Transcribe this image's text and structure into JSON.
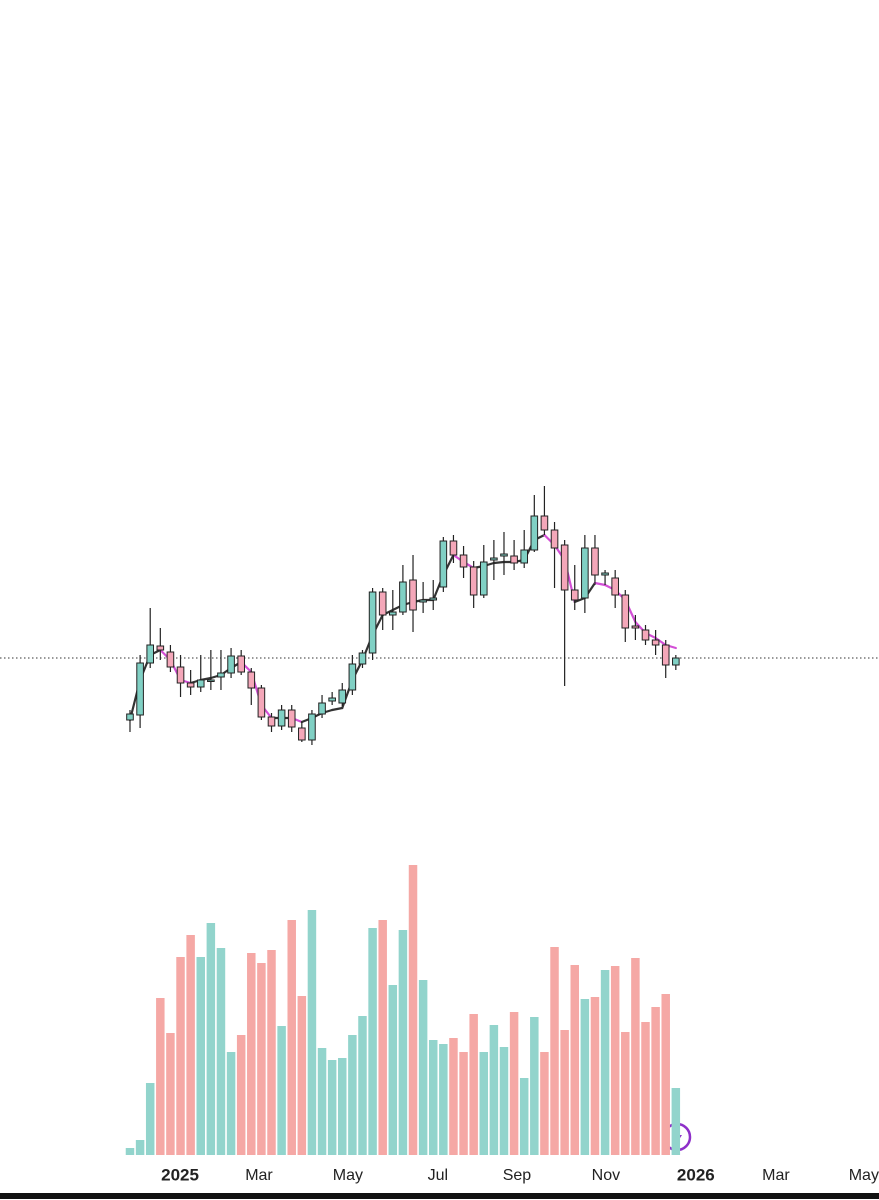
{
  "chart_data": {
    "type": "candlestick",
    "xlim": [
      -12.86,
      74.1
    ],
    "xticks": [
      {
        "value": 4.95,
        "label": "2025"
      },
      {
        "value": 12.76,
        "label": "Mar"
      },
      {
        "value": 21.56,
        "label": "May"
      },
      {
        "value": 30.46,
        "label": "Jul"
      },
      {
        "value": 38.28,
        "label": "Sep"
      },
      {
        "value": 47.08,
        "label": "Nov"
      },
      {
        "value": 55.98,
        "label": "2026"
      },
      {
        "value": 63.9,
        "label": "Mar"
      },
      {
        "value": 72.6,
        "label": "May"
      }
    ],
    "ylim": [
      40,
      330
    ],
    "volume_ylim": [
      0,
      300
    ],
    "up_color": "#80d0c4",
    "down_color": "#f4a7b9",
    "volume_up_color": "#92d4cc",
    "volume_down_color": "#f5a8a5",
    "open": [
      80,
      85,
      137,
      154,
      148,
      133,
      117,
      113,
      119,
      123,
      127,
      144,
      128,
      112,
      83,
      74,
      90,
      72,
      60,
      86,
      99,
      97,
      110,
      136,
      147,
      208,
      185,
      188,
      220,
      198,
      200,
      213,
      259,
      245,
      233,
      205,
      240,
      244,
      244,
      237,
      250,
      284,
      270,
      255,
      210,
      202,
      252,
      225,
      222,
      205,
      174,
      170,
      160,
      155,
      135
    ],
    "high": [
      90,
      145,
      192,
      172,
      155,
      145,
      130,
      145,
      150,
      150,
      152,
      150,
      132,
      115,
      87,
      95,
      95,
      78,
      90,
      105,
      108,
      117,
      145,
      150,
      212,
      212,
      210,
      235,
      245,
      218,
      220,
      263,
      265,
      254,
      239,
      255,
      260,
      268,
      260,
      270,
      305,
      314,
      278,
      260,
      235,
      265,
      265,
      230,
      230,
      210,
      185,
      175,
      170,
      160,
      145
    ],
    "low": [
      68,
      72,
      132,
      140,
      128,
      103,
      105,
      108,
      110,
      110,
      122,
      125,
      95,
      80,
      68,
      70,
      68,
      58,
      55,
      82,
      95,
      94,
      105,
      132,
      140,
      170,
      170,
      185,
      168,
      187,
      190,
      208,
      237,
      222,
      192,
      202,
      220,
      225,
      230,
      232,
      248,
      265,
      212,
      114,
      190,
      187,
      215,
      215,
      192,
      158,
      160,
      155,
      145,
      122,
      130
    ],
    "close": [
      86,
      137,
      155,
      150,
      133,
      117,
      113,
      120,
      120,
      127,
      144,
      128,
      112,
      83,
      74,
      90,
      73,
      60,
      86,
      97,
      102,
      110,
      136,
      147,
      208,
      185,
      188,
      218,
      190,
      200,
      202,
      259,
      245,
      233,
      205,
      238,
      242,
      246,
      237,
      250,
      284,
      270,
      252,
      210,
      200,
      252,
      225,
      227,
      205,
      172,
      172,
      160,
      155,
      135,
      142
    ],
    "volume": [
      7,
      15,
      72,
      157,
      122,
      198,
      220,
      198,
      232,
      207,
      103,
      120,
      202,
      192,
      205,
      129,
      235,
      159,
      245,
      107,
      95,
      97,
      120,
      139,
      227,
      235,
      170,
      225,
      290,
      175,
      115,
      111,
      117,
      103,
      141,
      103,
      130,
      108,
      143,
      77,
      138,
      103,
      208,
      125,
      190,
      156,
      158,
      185,
      189,
      123,
      197,
      133,
      148,
      161,
      67
    ],
    "ma": {
      "up_color": "#333333",
      "down_color": "#d34fd6",
      "values": [
        80,
        120,
        145,
        150,
        140,
        120,
        117,
        120,
        122,
        125,
        132,
        138,
        128,
        95,
        82,
        82,
        82,
        78,
        82,
        87,
        90,
        92,
        120,
        140,
        165,
        185,
        190,
        195,
        198,
        200,
        200,
        225,
        245,
        238,
        232,
        234,
        237,
        238,
        238,
        240,
        260,
        265,
        255,
        240,
        198,
        202,
        217,
        215,
        210,
        200,
        178,
        167,
        162,
        155,
        152
      ]
    }
  }
}
